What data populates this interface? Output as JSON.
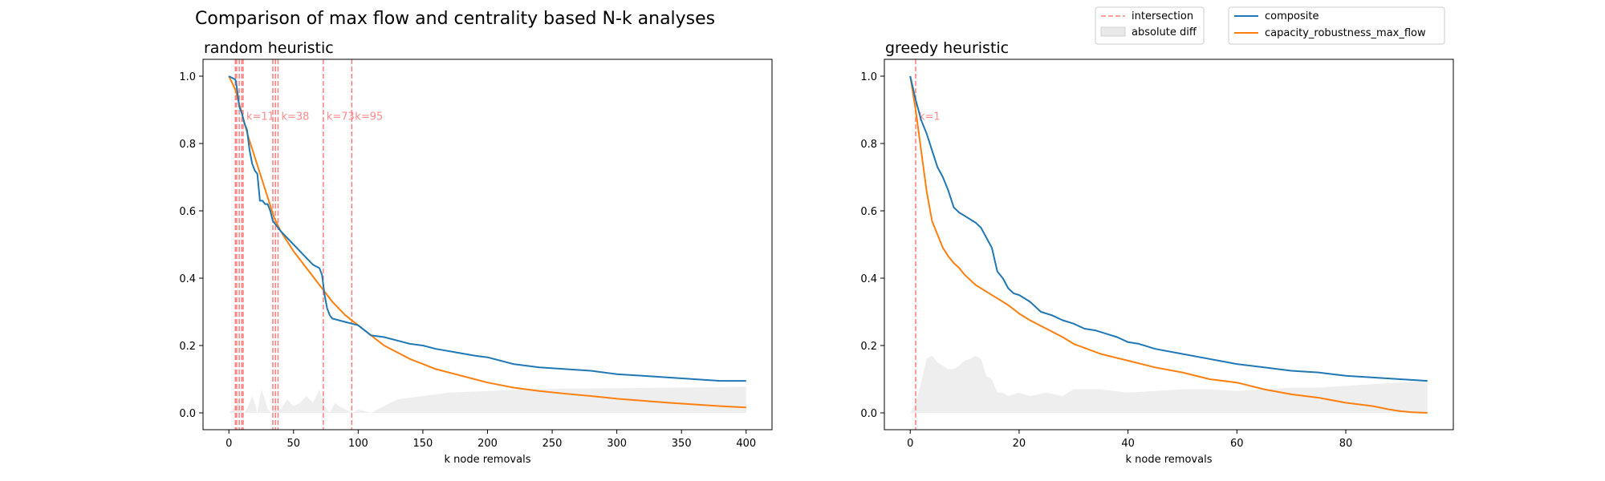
{
  "figure": {
    "title": "Comparison of max flow and centrality based N-k analyses"
  },
  "legend": {
    "left_box": {
      "entries": [
        "intersection",
        "absolute diff"
      ]
    },
    "right_box": {
      "entries": [
        "composite",
        "capacity_robustness_max_flow"
      ]
    }
  },
  "colors": {
    "composite": "#1f77b4",
    "capacity_robustness_max_flow": "#ff7f0e",
    "intersection": "#ff7f7f",
    "absolute_diff_fill": "#d9d9d9",
    "axes": "#000000"
  },
  "chart_data": [
    {
      "type": "line",
      "title": "random heuristic",
      "xlabel": "k node removals",
      "ylabel": "",
      "xlim": [
        -20,
        420
      ],
      "ylim": [
        -0.05,
        1.05
      ],
      "xticks": [
        0,
        50,
        100,
        150,
        200,
        250,
        300,
        350,
        400
      ],
      "yticks": [
        0.0,
        0.2,
        0.4,
        0.6,
        0.8,
        1.0
      ],
      "xtick_labels": [
        "0",
        "50",
        "100",
        "150",
        "200",
        "250",
        "300",
        "350",
        "400"
      ],
      "ytick_labels": [
        "0.0",
        "0.2",
        "0.4",
        "0.6",
        "0.8",
        "1.0"
      ],
      "grid": false,
      "series": [
        {
          "name": "composite",
          "x": [
            0,
            5,
            6,
            8,
            10,
            12,
            14,
            16,
            18,
            20,
            22,
            24,
            26,
            28,
            30,
            32,
            34,
            36,
            38,
            40,
            45,
            50,
            55,
            60,
            65,
            70,
            72,
            74,
            76,
            78,
            80,
            85,
            90,
            95,
            100,
            105,
            110,
            120,
            130,
            140,
            150,
            160,
            175,
            190,
            200,
            210,
            220,
            240,
            260,
            280,
            300,
            320,
            340,
            360,
            380,
            400
          ],
          "y": [
            1.0,
            0.99,
            0.97,
            0.91,
            0.89,
            0.86,
            0.84,
            0.78,
            0.74,
            0.72,
            0.71,
            0.63,
            0.63,
            0.62,
            0.62,
            0.6,
            0.57,
            0.56,
            0.55,
            0.54,
            0.52,
            0.5,
            0.48,
            0.46,
            0.44,
            0.43,
            0.41,
            0.35,
            0.31,
            0.29,
            0.28,
            0.275,
            0.27,
            0.265,
            0.26,
            0.245,
            0.23,
            0.225,
            0.215,
            0.205,
            0.2,
            0.19,
            0.18,
            0.17,
            0.165,
            0.155,
            0.145,
            0.135,
            0.13,
            0.125,
            0.115,
            0.11,
            0.105,
            0.1,
            0.095,
            0.095
          ]
        },
        {
          "name": "capacity_robustness_max_flow",
          "x": [
            0,
            5,
            10,
            15,
            20,
            25,
            30,
            35,
            40,
            50,
            60,
            70,
            80,
            90,
            100,
            110,
            120,
            130,
            140,
            150,
            160,
            175,
            190,
            200,
            220,
            240,
            260,
            280,
            300,
            320,
            340,
            360,
            380,
            400
          ],
          "y": [
            1.0,
            0.96,
            0.89,
            0.82,
            0.76,
            0.7,
            0.64,
            0.58,
            0.54,
            0.48,
            0.43,
            0.38,
            0.33,
            0.29,
            0.26,
            0.23,
            0.2,
            0.18,
            0.16,
            0.145,
            0.13,
            0.115,
            0.1,
            0.09,
            0.075,
            0.065,
            0.057,
            0.05,
            0.042,
            0.036,
            0.03,
            0.025,
            0.02,
            0.016
          ]
        },
        {
          "name": "absolute diff",
          "x": [
            0,
            5,
            8,
            10,
            12,
            15,
            18,
            20,
            22,
            25,
            28,
            30,
            33,
            36,
            40,
            45,
            50,
            55,
            60,
            65,
            70,
            74,
            78,
            82,
            85,
            90,
            95,
            100,
            110,
            120,
            130,
            150,
            170,
            200,
            230,
            260,
            300,
            340,
            380,
            400
          ],
          "y": [
            0.0,
            0.02,
            0.04,
            0.01,
            0.0,
            0.02,
            0.05,
            0.03,
            0.0,
            0.07,
            0.04,
            0.01,
            0.0,
            0.03,
            0.01,
            0.04,
            0.02,
            0.03,
            0.05,
            0.03,
            0.07,
            0.02,
            0.0,
            0.03,
            0.02,
            0.01,
            0.0,
            0.01,
            0.0,
            0.02,
            0.04,
            0.05,
            0.06,
            0.065,
            0.07,
            0.072,
            0.073,
            0.075,
            0.076,
            0.078
          ]
        }
      ],
      "intersections": [
        {
          "k": 5,
          "label": ""
        },
        {
          "k": 6,
          "label": ""
        },
        {
          "k": 8,
          "label": ""
        },
        {
          "k": 10,
          "label": ""
        },
        {
          "k": 11,
          "label": "k=11"
        },
        {
          "k": 34,
          "label": ""
        },
        {
          "k": 36,
          "label": ""
        },
        {
          "k": 38,
          "label": "k=38"
        },
        {
          "k": 73,
          "label": "k=73"
        },
        {
          "k": 95,
          "label": "k=95"
        }
      ]
    },
    {
      "type": "line",
      "title": "greedy heuristic",
      "xlabel": "k node removals",
      "ylabel": "",
      "xlim": [
        -4.75,
        99.75
      ],
      "ylim": [
        -0.05,
        1.05
      ],
      "xticks": [
        0,
        20,
        40,
        60,
        80
      ],
      "yticks": [
        0.0,
        0.2,
        0.4,
        0.6,
        0.8,
        1.0
      ],
      "xtick_labels": [
        "0",
        "20",
        "40",
        "60",
        "80"
      ],
      "ytick_labels": [
        "0.0",
        "0.2",
        "0.4",
        "0.6",
        "0.8",
        "1.0"
      ],
      "grid": false,
      "series": [
        {
          "name": "composite",
          "x": [
            0,
            1,
            2,
            3,
            4,
            5,
            6,
            7,
            8,
            9,
            10,
            11,
            12,
            13,
            14,
            15,
            16,
            17,
            18,
            19,
            20,
            22,
            24,
            26,
            28,
            30,
            32,
            34,
            36,
            38,
            40,
            42,
            45,
            50,
            55,
            60,
            65,
            70,
            75,
            80,
            85,
            90,
            95
          ],
          "y": [
            1.0,
            0.93,
            0.87,
            0.83,
            0.78,
            0.73,
            0.7,
            0.66,
            0.61,
            0.595,
            0.585,
            0.575,
            0.565,
            0.55,
            0.52,
            0.49,
            0.42,
            0.4,
            0.37,
            0.355,
            0.35,
            0.33,
            0.3,
            0.29,
            0.275,
            0.265,
            0.25,
            0.245,
            0.235,
            0.225,
            0.21,
            0.205,
            0.19,
            0.175,
            0.16,
            0.145,
            0.135,
            0.125,
            0.12,
            0.11,
            0.105,
            0.1,
            0.095
          ]
        },
        {
          "name": "capacity_robustness_max_flow",
          "x": [
            0,
            1,
            2,
            3,
            4,
            5,
            6,
            7,
            8,
            9,
            10,
            12,
            14,
            16,
            18,
            20,
            22,
            25,
            28,
            30,
            35,
            40,
            45,
            50,
            55,
            60,
            65,
            70,
            75,
            80,
            85,
            88,
            90,
            92,
            95
          ],
          "y": [
            1.0,
            0.9,
            0.78,
            0.66,
            0.57,
            0.53,
            0.49,
            0.465,
            0.445,
            0.43,
            0.41,
            0.38,
            0.36,
            0.34,
            0.32,
            0.295,
            0.275,
            0.25,
            0.225,
            0.205,
            0.175,
            0.155,
            0.135,
            0.12,
            0.1,
            0.09,
            0.07,
            0.055,
            0.045,
            0.03,
            0.02,
            0.01,
            0.005,
            0.002,
            0.0
          ]
        },
        {
          "name": "absolute diff",
          "x": [
            0,
            1,
            2,
            3,
            4,
            5,
            6,
            7,
            8,
            9,
            10,
            11,
            12,
            13,
            14,
            15,
            16,
            17,
            18,
            20,
            22,
            25,
            28,
            30,
            35,
            40,
            45,
            50,
            55,
            60,
            65,
            70,
            75,
            80,
            85,
            90,
            95
          ],
          "y": [
            0.0,
            0.03,
            0.09,
            0.16,
            0.17,
            0.15,
            0.14,
            0.13,
            0.13,
            0.14,
            0.155,
            0.16,
            0.17,
            0.16,
            0.11,
            0.1,
            0.06,
            0.06,
            0.05,
            0.06,
            0.05,
            0.06,
            0.05,
            0.07,
            0.07,
            0.06,
            0.065,
            0.07,
            0.07,
            0.065,
            0.07,
            0.075,
            0.075,
            0.08,
            0.085,
            0.09,
            0.095
          ]
        }
      ],
      "intersections": [
        {
          "k": 1,
          "label": "k=1"
        }
      ]
    }
  ]
}
